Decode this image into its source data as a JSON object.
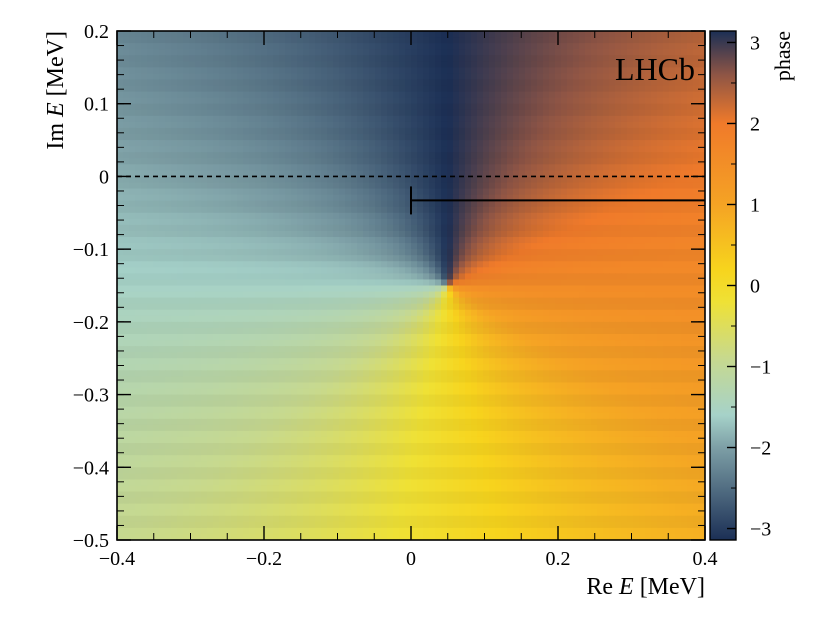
{
  "chart_data": {
    "type": "heatmap",
    "title": "",
    "xlabel": "Re E [MeV]",
    "xlabel_parts": {
      "pre": "Re ",
      "var": "E",
      "post": " [MeV]"
    },
    "ylabel": "Im E [MeV]",
    "ylabel_parts": {
      "pre": "Im ",
      "var": "E",
      "post": " [MeV]"
    },
    "xlim": [
      -0.4,
      0.4
    ],
    "ylim": [
      -0.5,
      0.2
    ],
    "xticks": [
      {
        "v": -0.4,
        "label": "−0.4"
      },
      {
        "v": -0.2,
        "label": "−0.2"
      },
      {
        "v": 0.0,
        "label": "0"
      },
      {
        "v": 0.2,
        "label": "0.2"
      },
      {
        "v": 0.4,
        "label": "0.4"
      }
    ],
    "yticks": [
      {
        "v": 0.2,
        "label": "0.2"
      },
      {
        "v": 0.1,
        "label": "0.1"
      },
      {
        "v": 0.0,
        "label": "0"
      },
      {
        "v": -0.1,
        "label": "−0.1"
      },
      {
        "v": -0.2,
        "label": "−0.2"
      },
      {
        "v": -0.3,
        "label": "−0.3"
      },
      {
        "v": -0.4,
        "label": "−0.4"
      },
      {
        "v": -0.5,
        "label": "−0.5"
      }
    ],
    "z_label": "phase",
    "zlim": [
      -3.1416,
      3.1416
    ],
    "zticks": [
      {
        "v": 3,
        "label": "3"
      },
      {
        "v": 2,
        "label": "2"
      },
      {
        "v": 1,
        "label": "1"
      },
      {
        "v": 0,
        "label": "0"
      },
      {
        "v": -1,
        "label": "−1"
      },
      {
        "v": -2,
        "label": "−2"
      },
      {
        "v": -3,
        "label": "−3"
      }
    ],
    "pole": {
      "re": 0.05,
      "im": -0.15
    },
    "phase_convention": "phase = atan2(Re E − Re pole, −(Im E − Im pole)); branch cut along +Im direction from pole",
    "dashed_line": {
      "im": 0.0
    },
    "threshold_marker": {
      "re": 0.0,
      "im": -0.033
    },
    "branch_cut_line": {
      "re_from": 0.0,
      "re_to": 0.4,
      "im": -0.033
    },
    "colormap": {
      "stops": [
        {
          "z": -3.1416,
          "color": "#1b2f55"
        },
        {
          "z": -2.0,
          "color": "#7d9fa6"
        },
        {
          "z": -1.6,
          "color": "#a6d2c9"
        },
        {
          "z": -0.9,
          "color": "#c7d98e"
        },
        {
          "z": -0.2,
          "color": "#efe135"
        },
        {
          "z": 0.2,
          "color": "#f7d41d"
        },
        {
          "z": 1.0,
          "color": "#f5a324"
        },
        {
          "z": 2.0,
          "color": "#f07a2a"
        },
        {
          "z": 2.6,
          "color": "#8f5545"
        },
        {
          "z": 3.1416,
          "color": "#1b2f55"
        }
      ]
    },
    "watermark": "LHCb",
    "grid": false,
    "legend": "none"
  }
}
